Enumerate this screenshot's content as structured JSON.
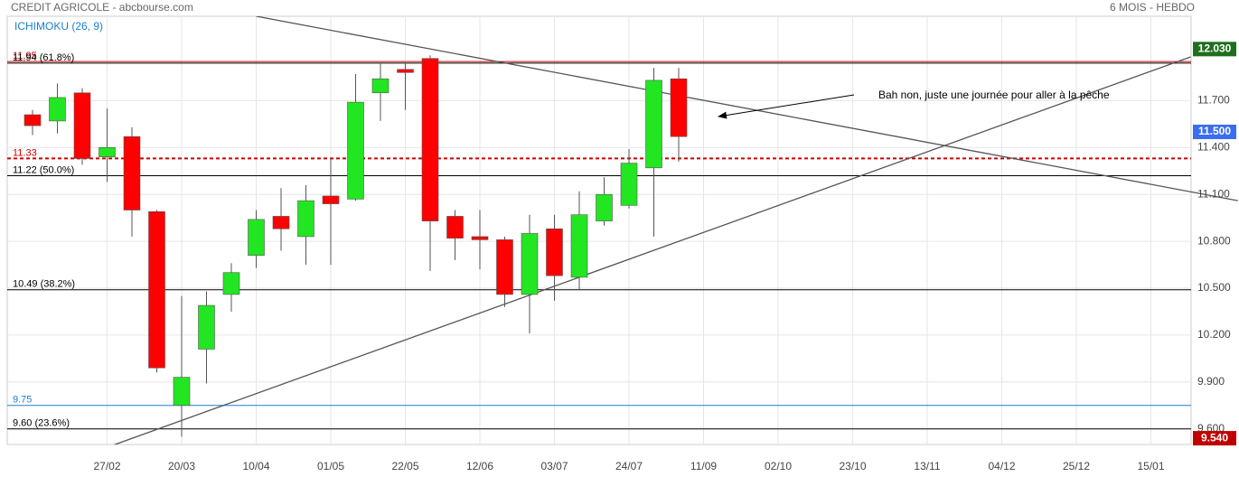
{
  "chart_data": {
    "type": "candlestick",
    "title": "CREDIT AGRICOLE - abcbourse.com",
    "subtitle": "6 MOIS - HEBDO",
    "indicator": "ICHIMOKU (26, 9)",
    "annotation": "Bah non, juste une journée  pour aller à la pêche",
    "categories": [
      null,
      null,
      null,
      "27/02",
      null,
      null,
      "20/03",
      null,
      null,
      "10/04",
      null,
      null,
      "01/05",
      null,
      null,
      "22/05",
      null,
      null,
      "12/06",
      null,
      null,
      "03/07",
      null,
      null,
      "24/07",
      null,
      null,
      "11/09",
      null,
      null,
      "02/10",
      null,
      null,
      "23/10",
      null,
      null,
      "13/11",
      null,
      null,
      "04/12",
      null,
      null,
      "25/12",
      null,
      null,
      "15/01",
      null
    ],
    "open": [
      11.61,
      11.57,
      11.75,
      11.34,
      11.47,
      10.99,
      9.75,
      10.11,
      10.46,
      10.71,
      10.96,
      10.83,
      11.09,
      11.07,
      11.75,
      11.9,
      11.97,
      10.96,
      10.83,
      10.81,
      10.46,
      10.88,
      10.57,
      10.93,
      11.03,
      11.27,
      11.84,
      null,
      null,
      null,
      null,
      null,
      null,
      null,
      null,
      null,
      null,
      null,
      null,
      null,
      null,
      null,
      null,
      null,
      null,
      null,
      null
    ],
    "high": [
      11.64,
      11.81,
      11.78,
      11.65,
      11.53,
      11.0,
      10.45,
      10.48,
      10.66,
      11.0,
      11.14,
      11.16,
      11.33,
      11.87,
      11.94,
      11.94,
      11.99,
      11.0,
      11.0,
      10.83,
      10.97,
      10.97,
      11.12,
      11.21,
      11.39,
      11.91,
      11.91,
      null,
      null,
      null,
      null,
      null,
      null,
      null,
      null,
      null,
      null,
      null,
      null,
      null,
      null,
      null,
      null,
      null,
      null,
      null,
      null
    ],
    "low": [
      11.48,
      11.49,
      11.29,
      11.18,
      10.83,
      9.96,
      9.55,
      9.89,
      10.35,
      10.63,
      10.74,
      10.65,
      10.65,
      11.06,
      11.57,
      11.64,
      10.61,
      10.68,
      10.62,
      10.38,
      10.21,
      10.42,
      10.49,
      10.9,
      11.01,
      10.83,
      11.31,
      null,
      null,
      null,
      null,
      null,
      null,
      null,
      null,
      null,
      null,
      null,
      null,
      null,
      null,
      null,
      null,
      null,
      null,
      null,
      null
    ],
    "close": [
      11.54,
      11.72,
      11.33,
      11.4,
      11.0,
      9.99,
      9.93,
      10.39,
      10.6,
      10.94,
      10.88,
      11.06,
      11.04,
      11.69,
      11.84,
      11.88,
      10.93,
      10.82,
      10.81,
      10.46,
      10.85,
      10.58,
      10.97,
      11.1,
      11.3,
      11.83,
      11.47,
      null,
      null,
      null,
      null,
      null,
      null,
      null,
      null,
      null,
      null,
      null,
      null,
      null,
      null,
      null,
      null,
      null,
      null,
      null,
      null
    ],
    "up_color": "#22e622",
    "down_color": "#ff0000",
    "ylim": [
      9.5,
      12.24
    ],
    "yticks": [
      {
        "value": 9.6,
        "label": "9.600"
      },
      {
        "value": 9.9,
        "label": "9.900"
      },
      {
        "value": 10.2,
        "label": "10.200"
      },
      {
        "value": 10.5,
        "label": "10.500"
      },
      {
        "value": 10.8,
        "label": "10.800"
      },
      {
        "value": 11.1,
        "label": "11.100"
      },
      {
        "value": 11.4,
        "label": "11.400"
      },
      {
        "value": 11.7,
        "label": "11.700"
      }
    ],
    "grid": true,
    "levels": [
      {
        "value": 11.95,
        "label": "11.95",
        "color": "#cc0000",
        "dashed": false
      },
      {
        "value": 11.94,
        "label": "11.94  (61.8%)",
        "color": "#000000",
        "dashed": false
      },
      {
        "value": 11.33,
        "label": "11.33",
        "color": "#cc0000",
        "dashed": true
      },
      {
        "value": 11.22,
        "label": "11.22  (50.0%)",
        "color": "#000000",
        "dashed": false
      },
      {
        "value": 10.49,
        "label": "10.49  (38.2%)",
        "color": "#000000",
        "dashed": false
      },
      {
        "value": 9.75,
        "label": "9.75",
        "color": "#1a7fd6",
        "dashed": false
      },
      {
        "value": 9.6,
        "label": "9.60  (23.6%)",
        "color": "#000000",
        "dashed": false
      }
    ],
    "markers": [
      {
        "value": 12.03,
        "label": "12.030",
        "color": "#1e6e1e"
      },
      {
        "value": 11.5,
        "label": "11.500",
        "color": "#3a6df0"
      },
      {
        "value": 9.54,
        "label": "9.540",
        "color": "#c00000"
      }
    ],
    "trendlines": [
      {
        "x": [
          9,
          48.5
        ],
        "y": [
          12.24,
          11.06
        ]
      },
      {
        "x": [
          2.1,
          46.6
        ],
        "y": [
          9.43,
          11.98
        ]
      }
    ]
  }
}
